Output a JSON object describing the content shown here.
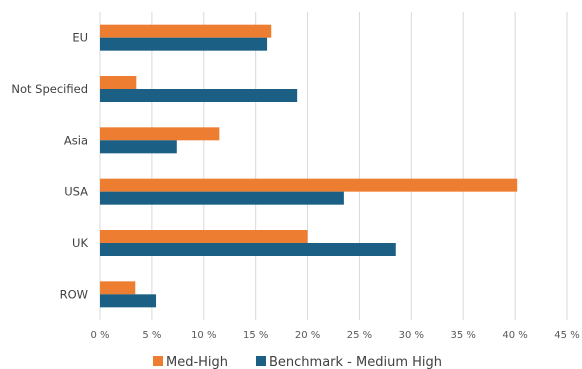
{
  "chart_data": {
    "type": "bar",
    "orientation": "horizontal",
    "categories": [
      "EU",
      "Not Specified",
      "Asia",
      "USA",
      "UK",
      "ROW"
    ],
    "series": [
      {
        "name": "Med-High",
        "color": "#ED7D31",
        "values": [
          16.5,
          3.5,
          11.5,
          40.2,
          20.0,
          3.4
        ]
      },
      {
        "name": "Benchmark - Medium High",
        "color": "#1B5F84",
        "values": [
          16.1,
          19.0,
          7.4,
          23.5,
          28.5,
          5.4
        ]
      }
    ],
    "xlim": [
      0,
      45
    ],
    "xticks": [
      "0 %",
      "5 %",
      "10 %",
      "15 %",
      "20 %",
      "25 %",
      "30 %",
      "35 %",
      "40 %",
      "45 %"
    ],
    "xtick_values": [
      0,
      5,
      10,
      15,
      20,
      25,
      30,
      35,
      40,
      45
    ],
    "grid": "vertical",
    "legend_position": "bottom-center"
  }
}
